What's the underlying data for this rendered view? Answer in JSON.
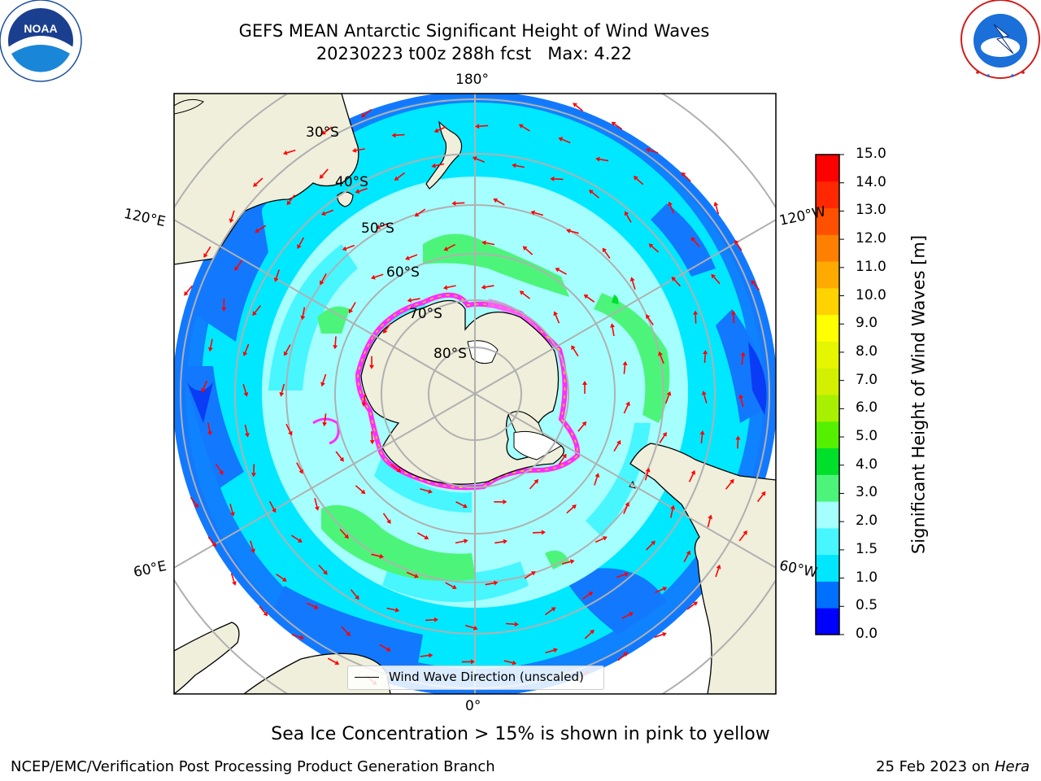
{
  "title": {
    "line1": "GEFS MEAN Antarctic Significant Height of Wind Waves",
    "line2": "20230223 t00z 288h fcst   Max: 4.22"
  },
  "map": {
    "projection": "south polar stereographic",
    "longitude_labels": [
      "180°",
      "120°E",
      "120°W",
      "60°E",
      "60°W",
      "0°"
    ],
    "latitude_labels": [
      "30°S",
      "40°S",
      "50°S",
      "60°S",
      "70°S",
      "80°S"
    ],
    "legend": "Wind Wave Direction (unscaled)",
    "arrow_color": "#ff0000",
    "land_color": "#efefdb",
    "sea_ice_colors": [
      "#ff66ff",
      "#ff00ff",
      "#ffff00"
    ]
  },
  "colorbar": {
    "label": "Significant Height of Wind Waves [m]",
    "ticks": [
      "15.0",
      "14.0",
      "13.0",
      "12.0",
      "11.0",
      "10.0",
      "9.0",
      "8.0",
      "7.0",
      "6.0",
      "5.0",
      "4.0",
      "3.0",
      "2.0",
      "1.5",
      "1.0",
      "0.5",
      "0.0"
    ],
    "colors": [
      "#0000ff",
      "#0070ff",
      "#00e6ff",
      "#47f6ff",
      "#a6ffff",
      "#4cf57a",
      "#00e02b",
      "#55f000",
      "#a8f000",
      "#d2f000",
      "#e6f500",
      "#ffff00",
      "#ffd200",
      "#ffaa00",
      "#ff8000",
      "#ff5000",
      "#ff2800",
      "#ff0000"
    ]
  },
  "logos": {
    "noaa": "NOAA",
    "nws": "NATIONAL WEATHER SERVICE"
  },
  "footer": {
    "note": "Sea Ice Concentration > 15% is shown in pink to yellow",
    "credit": "NCEP/EMC/Verification Post Processing Product Generation Branch",
    "date": "25 Feb 2023 on",
    "host": "Hera"
  }
}
